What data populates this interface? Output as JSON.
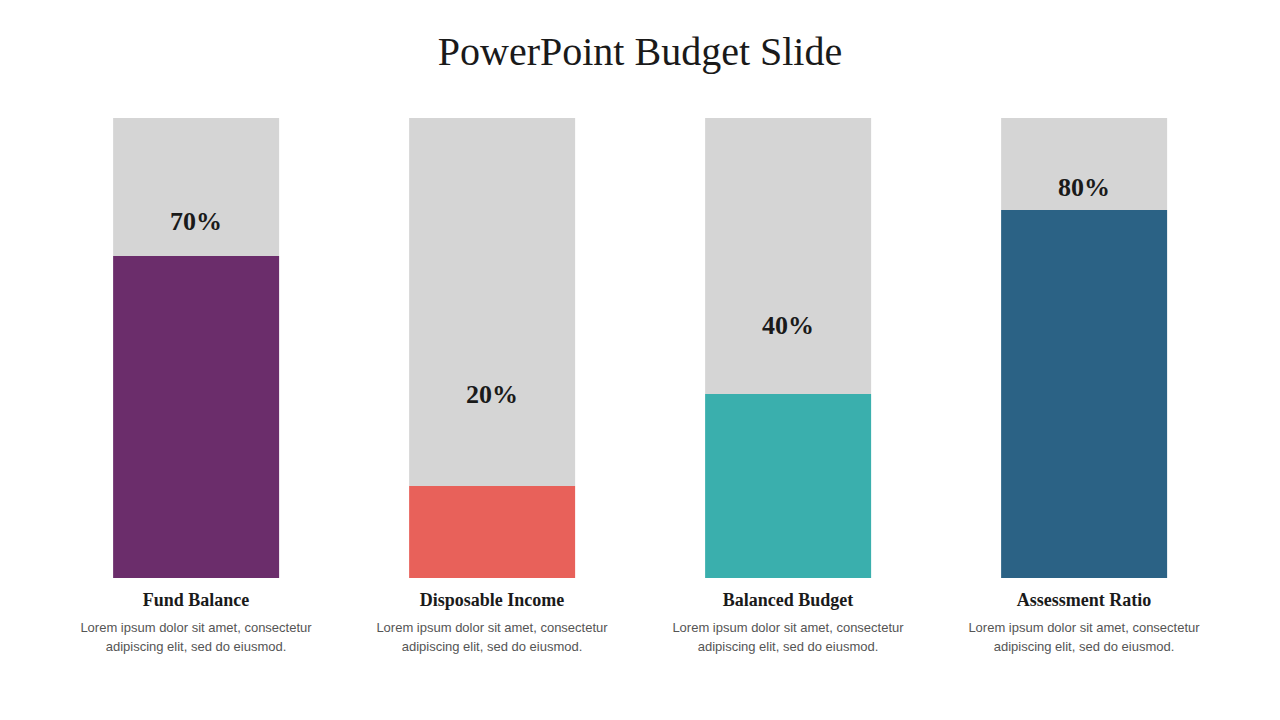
{
  "chart_data": {
    "type": "bar",
    "title": "PowerPoint Budget Slide",
    "stacked": true,
    "categories": [
      "Fund Balance",
      "Disposable Income",
      "Balanced Budget",
      "Assessment Ratio"
    ],
    "annotations": [
      "Lorem ipsum dolor sit amet, consectetur\nadipiscing elit, sed do eiusmod.",
      "Lorem ipsum dolor sit amet, consectetur\nadipiscing elit, sed do eiusmod.",
      "Lorem ipsum dolor sit amet, consectetur\nadipiscing elit, sed do eiusmod.",
      "Lorem ipsum dolor sit amet, consectetur\nadipiscing elit, sed do eiusmod."
    ],
    "series": [
      {
        "values": [
          70,
          20,
          40,
          80
        ],
        "colors": [
          "#6B2D6B",
          "#E8615A",
          "#3AAFAD",
          "#2B6285"
        ],
        "value_labels": [
          "70%",
          "20%",
          "40%",
          "80%"
        ]
      },
      {
        "values": [
          30,
          80,
          60,
          20
        ],
        "color": "#D5D5D5"
      }
    ],
    "ylim": [
      0,
      100
    ],
    "tick_labels": false,
    "grid": false
  }
}
